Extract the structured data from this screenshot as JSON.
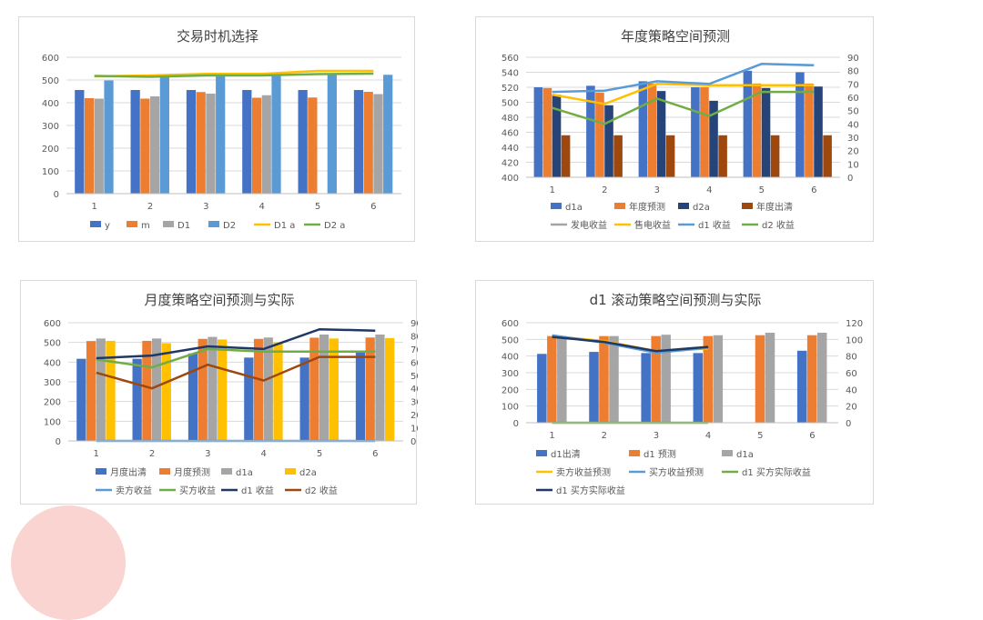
{
  "colors": {
    "blue": "#4472C4",
    "orange": "#ED7D31",
    "gray": "#A5A5A5",
    "gold": "#FFC000",
    "lightblue": "#5B9BD5",
    "green": "#70AD47",
    "navy": "#264478",
    "brown": "#9E480E",
    "darkblue": "#203864"
  },
  "chart_data": [
    {
      "type": "bar",
      "title": "交易时机选择",
      "categories": [
        "1",
        "2",
        "3",
        "4",
        "5",
        "6"
      ],
      "ylim": [
        0,
        600
      ],
      "yticks": [
        0,
        100,
        200,
        300,
        400,
        500,
        600
      ],
      "grid": true,
      "legend_position": "bottom",
      "series": [
        {
          "name": "y",
          "kind": "bar",
          "axis": "left",
          "color": "#4472C4",
          "values": [
            456,
            456,
            456,
            456,
            456,
            456
          ]
        },
        {
          "name": "m",
          "kind": "bar",
          "axis": "left",
          "color": "#ED7D31",
          "values": [
            420,
            418,
            447,
            422,
            423,
            448
          ]
        },
        {
          "name": "D1",
          "kind": "bar",
          "axis": "left",
          "color": "#A5A5A5",
          "values": [
            418,
            428,
            440,
            433,
            null,
            438
          ]
        },
        {
          "name": "D2",
          "kind": "bar",
          "axis": "left",
          "color": "#5B9BD5",
          "values": [
            498,
            513,
            523,
            520,
            528,
            523
          ]
        },
        {
          "name": "D1 a",
          "kind": "line",
          "axis": "left",
          "color": "#FFC000",
          "values": [
            516,
            520,
            527,
            527,
            540,
            540
          ]
        },
        {
          "name": "D2 a",
          "kind": "line",
          "axis": "left",
          "color": "#70AD47",
          "values": [
            518,
            514,
            520,
            520,
            526,
            528
          ]
        }
      ]
    },
    {
      "type": "bar",
      "title": "年度策略空间预测",
      "categories": [
        "1",
        "2",
        "3",
        "4",
        "5",
        "6"
      ],
      "ylim": [
        400,
        560
      ],
      "yticks": [
        400,
        420,
        440,
        460,
        480,
        500,
        520,
        540,
        560
      ],
      "y2lim": [
        0,
        90
      ],
      "y2ticks": [
        0,
        10,
        20,
        30,
        40,
        50,
        60,
        70,
        80,
        90
      ],
      "grid": true,
      "legend_position": "bottom",
      "series": [
        {
          "name": "d1a",
          "kind": "bar",
          "axis": "left",
          "color": "#4472C4",
          "values": [
            520,
            522,
            528,
            520,
            542,
            540
          ]
        },
        {
          "name": "年度预测",
          "kind": "bar",
          "axis": "left",
          "color": "#ED7D31",
          "values": [
            519,
            513,
            525,
            520,
            525,
            525
          ]
        },
        {
          "name": "d2a",
          "kind": "bar",
          "axis": "left",
          "color": "#264478",
          "values": [
            510,
            496,
            515,
            502,
            519,
            521
          ]
        },
        {
          "name": "年度出清",
          "kind": "bar",
          "axis": "left",
          "color": "#9E480E",
          "values": [
            456,
            456,
            456,
            456,
            456,
            456
          ]
        },
        {
          "name": "发电收益",
          "kind": "line",
          "axis": "right",
          "color": "#A5A5A5",
          "values": [
            null,
            null,
            null,
            null,
            null,
            null
          ]
        },
        {
          "name": "售电收益",
          "kind": "line",
          "axis": "right",
          "color": "#FFC000",
          "values": [
            62,
            55,
            70,
            69,
            69,
            69
          ]
        },
        {
          "name": "d1 收益",
          "kind": "line",
          "axis": "right",
          "color": "#5B9BD5",
          "values": [
            64,
            65,
            72,
            70,
            85,
            84
          ]
        },
        {
          "name": "d2 收益",
          "kind": "line",
          "axis": "right",
          "color": "#70AD47",
          "values": [
            52,
            40,
            59,
            46,
            64,
            64
          ]
        }
      ]
    },
    {
      "type": "bar",
      "title": "月度策略空间预测与实际",
      "categories": [
        "1",
        "2",
        "3",
        "4",
        "5",
        "6"
      ],
      "ylim": [
        0,
        600
      ],
      "yticks": [
        0,
        100,
        200,
        300,
        400,
        500,
        600
      ],
      "y2lim": [
        0,
        90
      ],
      "y2ticks": [
        0,
        10,
        20,
        30,
        40,
        50,
        60,
        70,
        80,
        90
      ],
      "grid": true,
      "legend_position": "bottom",
      "series": [
        {
          "name": "月度出清",
          "kind": "bar",
          "axis": "left",
          "color": "#4472C4",
          "values": [
            417,
            417,
            444,
            423,
            423,
            456
          ]
        },
        {
          "name": "月度预测",
          "kind": "bar",
          "axis": "left",
          "color": "#ED7D31",
          "values": [
            507,
            508,
            518,
            518,
            524,
            525
          ]
        },
        {
          "name": "d1a",
          "kind": "bar",
          "axis": "left",
          "color": "#A5A5A5",
          "values": [
            520,
            520,
            528,
            525,
            540,
            540
          ]
        },
        {
          "name": "d2a",
          "kind": "bar",
          "axis": "left",
          "color": "#FFC000",
          "values": [
            508,
            496,
            515,
            500,
            520,
            522
          ]
        },
        {
          "name": "卖方收益",
          "kind": "line",
          "axis": "right",
          "color": "#5B9BD5",
          "values": [
            0,
            0,
            0,
            0,
            0,
            0
          ]
        },
        {
          "name": "买方收益",
          "kind": "line",
          "axis": "right",
          "color": "#70AD47",
          "values": [
            62,
            56,
            70,
            68,
            68,
            68
          ]
        },
        {
          "name": "d1 收益",
          "kind": "line",
          "axis": "right",
          "color": "#203864",
          "values": [
            63,
            65,
            72,
            70,
            85,
            84
          ]
        },
        {
          "name": "d2 收益",
          "kind": "line",
          "axis": "right",
          "color": "#9E480E",
          "values": [
            52,
            40,
            58,
            46,
            64,
            64
          ]
        }
      ]
    },
    {
      "type": "bar",
      "title": "d1 滚动策略空间预测与实际",
      "categories": [
        "1",
        "2",
        "3",
        "4",
        "5",
        "6"
      ],
      "ylim": [
        0,
        600
      ],
      "yticks": [
        0,
        100,
        200,
        300,
        400,
        500,
        600
      ],
      "y2lim": [
        0,
        120
      ],
      "y2ticks": [
        0,
        20,
        40,
        60,
        80,
        100,
        120
      ],
      "grid": true,
      "legend_position": "bottom",
      "series": [
        {
          "name": "d1出清",
          "kind": "bar",
          "axis": "left",
          "color": "#4472C4",
          "values": [
            413,
            425,
            418,
            418,
            null,
            432
          ]
        },
        {
          "name": "d1 预测",
          "kind": "bar",
          "axis": "left",
          "color": "#ED7D31",
          "values": [
            520,
            520,
            520,
            520,
            525,
            525
          ]
        },
        {
          "name": "d1a",
          "kind": "bar",
          "axis": "left",
          "color": "#A5A5A5",
          "values": [
            520,
            520,
            528,
            525,
            540,
            540
          ]
        },
        {
          "name": "卖方收益预测",
          "kind": "line",
          "axis": "right",
          "color": "#FFC000",
          "values": [
            104,
            98,
            86,
            89,
            null,
            null
          ]
        },
        {
          "name": "买方收益预测",
          "kind": "line",
          "axis": "right",
          "color": "#5B9BD5",
          "values": [
            105,
            96,
            84,
            90,
            null,
            null
          ]
        },
        {
          "name": "d1 买方实际收益",
          "kind": "line",
          "axis": "right",
          "color": "#70AD47",
          "values": [
            0,
            0,
            0,
            0,
            null,
            null
          ]
        },
        {
          "name": "d1 买方实际收益",
          "kind": "line",
          "axis": "right",
          "color": "#203864",
          "values": [
            103,
            97,
            86,
            91,
            null,
            null
          ]
        }
      ]
    }
  ]
}
